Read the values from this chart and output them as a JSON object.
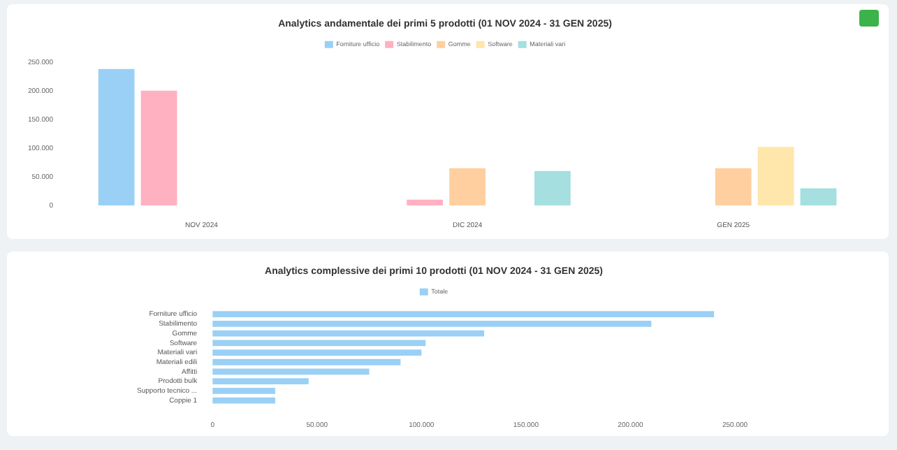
{
  "chart_data": [
    {
      "type": "bar",
      "title": "Analytics andamentale dei primi 5 prodotti (01 NOV 2024 - 31 GEN 2025)",
      "categories": [
        "NOV 2024",
        "DIC 2024",
        "GEN 2025"
      ],
      "series": [
        {
          "name": "Forniture ufficio",
          "color": "#9ad0f5",
          "values": [
            238000,
            null,
            null
          ]
        },
        {
          "name": "Stabilimento",
          "color": "#ffb1c1",
          "values": [
            200000,
            10000,
            null
          ]
        },
        {
          "name": "Gomme",
          "color": "#ffcf9f",
          "values": [
            null,
            65000,
            65000
          ]
        },
        {
          "name": "Software",
          "color": "#ffe6aa",
          "values": [
            null,
            null,
            102000
          ]
        },
        {
          "name": "Materiali vari",
          "color": "#a5dfdf",
          "values": [
            null,
            60000,
            30000
          ]
        }
      ],
      "ylim": [
        0,
        250000
      ],
      "yticks": [
        {
          "value": 0,
          "label": "0"
        },
        {
          "value": 50000,
          "label": "50.000"
        },
        {
          "value": 100000,
          "label": "100.000"
        },
        {
          "value": 150000,
          "label": "150.000"
        },
        {
          "value": 200000,
          "label": "200.000"
        },
        {
          "value": 250000,
          "label": "250.000"
        }
      ],
      "legend": "top"
    },
    {
      "type": "bar",
      "orientation": "horizontal",
      "title": "Analytics complessive dei primi 10 prodotti (01 NOV 2024 - 31 GEN 2025)",
      "categories": [
        "Forniture ufficio",
        "Stabilimento",
        "Gomme",
        "Software",
        "Materiali vari",
        "Materiali edili",
        "Affitti",
        "Prodotti bulk",
        "Supporto tecnico ...",
        "Coppie 1"
      ],
      "series": [
        {
          "name": "Totale",
          "color": "#9ad0f5",
          "values": [
            240000,
            210000,
            130000,
            102000,
            100000,
            90000,
            75000,
            46000,
            30000,
            30000
          ]
        }
      ],
      "xlim": [
        0,
        250000
      ],
      "xticks": [
        {
          "value": 0,
          "label": "0"
        },
        {
          "value": 50000,
          "label": "50.000"
        },
        {
          "value": 100000,
          "label": "100.000"
        },
        {
          "value": 150000,
          "label": "150.000"
        },
        {
          "value": 200000,
          "label": "200.000"
        },
        {
          "value": 250000,
          "label": "250.000"
        }
      ],
      "legend": "top"
    }
  ]
}
